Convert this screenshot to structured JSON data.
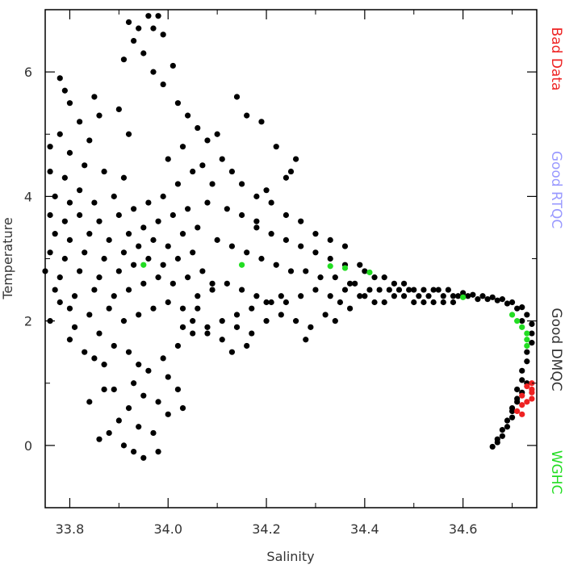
{
  "chart_data": {
    "type": "scatter",
    "xlabel": "Salinity",
    "ylabel": "Temperature",
    "xlim": [
      33.75,
      34.75
    ],
    "ylim": [
      -1.0,
      7.0
    ],
    "x_ticks": [
      {
        "value": 33.8,
        "label": "33.8"
      },
      {
        "value": 34.0,
        "label": "34.0"
      },
      {
        "value": 34.2,
        "label": "34.2"
      },
      {
        "value": 34.4,
        "label": "34.4"
      },
      {
        "value": 34.6,
        "label": "34.6"
      }
    ],
    "x_minor_ticks": [
      33.9,
      34.1,
      34.3,
      34.5,
      34.7
    ],
    "y_ticks": [
      {
        "value": 0,
        "label": "0"
      },
      {
        "value": 2,
        "label": "2"
      },
      {
        "value": 4,
        "label": "4"
      },
      {
        "value": 6,
        "label": "6"
      }
    ],
    "y_minor_ticks": [
      -1,
      1,
      3,
      5,
      7
    ],
    "grid": false,
    "legend_position": "right, vertical text",
    "series": [
      {
        "name": "Good DMQC",
        "color": "#000000",
        "points": [
          [
            33.78,
            5.9
          ],
          [
            33.79,
            5.7
          ],
          [
            33.8,
            5.5
          ],
          [
            33.82,
            5.2
          ],
          [
            33.78,
            5.0
          ],
          [
            33.76,
            4.8
          ],
          [
            33.8,
            4.7
          ],
          [
            33.84,
            4.9
          ],
          [
            33.86,
            5.3
          ],
          [
            33.85,
            5.6
          ],
          [
            33.76,
            4.4
          ],
          [
            33.79,
            4.3
          ],
          [
            33.83,
            4.5
          ],
          [
            33.87,
            4.4
          ],
          [
            33.82,
            4.1
          ],
          [
            33.77,
            4.0
          ],
          [
            33.8,
            3.9
          ],
          [
            33.85,
            3.9
          ],
          [
            33.89,
            4.0
          ],
          [
            33.91,
            4.3
          ],
          [
            33.76,
            3.7
          ],
          [
            33.79,
            3.6
          ],
          [
            33.82,
            3.7
          ],
          [
            33.86,
            3.6
          ],
          [
            33.9,
            3.7
          ],
          [
            33.93,
            3.8
          ],
          [
            33.96,
            3.9
          ],
          [
            33.99,
            4.0
          ],
          [
            34.02,
            4.2
          ],
          [
            34.05,
            4.4
          ],
          [
            33.77,
            3.4
          ],
          [
            33.8,
            3.3
          ],
          [
            33.84,
            3.4
          ],
          [
            33.88,
            3.3
          ],
          [
            33.92,
            3.4
          ],
          [
            33.95,
            3.5
          ],
          [
            33.98,
            3.6
          ],
          [
            34.01,
            3.7
          ],
          [
            34.04,
            3.8
          ],
          [
            34.08,
            3.9
          ],
          [
            33.76,
            3.1
          ],
          [
            33.79,
            3.0
          ],
          [
            33.83,
            3.1
          ],
          [
            33.87,
            3.0
          ],
          [
            33.91,
            3.1
          ],
          [
            33.94,
            3.2
          ],
          [
            33.97,
            3.3
          ],
          [
            34.0,
            3.2
          ],
          [
            34.03,
            3.4
          ],
          [
            34.06,
            3.5
          ],
          [
            33.75,
            2.8
          ],
          [
            33.78,
            2.7
          ],
          [
            33.82,
            2.8
          ],
          [
            33.86,
            2.7
          ],
          [
            33.9,
            2.8
          ],
          [
            33.93,
            2.9
          ],
          [
            33.96,
            3.0
          ],
          [
            33.99,
            2.9
          ],
          [
            34.02,
            3.0
          ],
          [
            34.05,
            3.1
          ],
          [
            33.77,
            2.5
          ],
          [
            33.81,
            2.4
          ],
          [
            33.85,
            2.5
          ],
          [
            33.89,
            2.4
          ],
          [
            33.92,
            2.5
          ],
          [
            33.95,
            2.6
          ],
          [
            33.98,
            2.7
          ],
          [
            34.01,
            2.6
          ],
          [
            34.04,
            2.7
          ],
          [
            34.07,
            2.8
          ],
          [
            33.8,
            2.2
          ],
          [
            33.84,
            2.1
          ],
          [
            33.88,
            2.2
          ],
          [
            33.91,
            2.0
          ],
          [
            33.94,
            2.1
          ],
          [
            33.97,
            2.2
          ],
          [
            34.0,
            2.3
          ],
          [
            34.03,
            2.2
          ],
          [
            34.06,
            2.4
          ],
          [
            34.09,
            2.5
          ],
          [
            33.86,
            1.8
          ],
          [
            33.89,
            1.6
          ],
          [
            33.92,
            1.5
          ],
          [
            33.94,
            1.3
          ],
          [
            33.93,
            1.0
          ],
          [
            33.95,
            0.8
          ],
          [
            33.92,
            0.6
          ],
          [
            33.9,
            0.4
          ],
          [
            33.94,
            0.3
          ],
          [
            33.97,
            0.2
          ],
          [
            33.88,
            0.2
          ],
          [
            33.91,
            0.0
          ],
          [
            33.93,
            -0.1
          ],
          [
            33.95,
            -0.2
          ],
          [
            33.98,
            -0.1
          ],
          [
            33.86,
            0.1
          ],
          [
            33.84,
            0.7
          ],
          [
            33.87,
            0.9
          ],
          [
            34.0,
            0.5
          ],
          [
            34.03,
            0.6
          ],
          [
            33.96,
            1.2
          ],
          [
            33.99,
            1.4
          ],
          [
            34.02,
            1.6
          ],
          [
            34.05,
            1.8
          ],
          [
            34.08,
            1.9
          ],
          [
            34.11,
            2.0
          ],
          [
            34.14,
            2.1
          ],
          [
            34.17,
            2.2
          ],
          [
            34.2,
            2.3
          ],
          [
            34.23,
            2.4
          ],
          [
            33.92,
            6.8
          ],
          [
            33.94,
            6.7
          ],
          [
            33.96,
            6.9
          ],
          [
            33.98,
            6.9
          ],
          [
            33.93,
            6.5
          ],
          [
            33.91,
            6.2
          ],
          [
            33.95,
            6.3
          ],
          [
            33.97,
            6.0
          ],
          [
            34.01,
            6.1
          ],
          [
            33.99,
            5.8
          ],
          [
            34.02,
            5.5
          ],
          [
            34.04,
            5.3
          ],
          [
            34.06,
            5.1
          ],
          [
            34.08,
            4.9
          ],
          [
            34.1,
            5.0
          ],
          [
            34.14,
            5.6
          ],
          [
            34.16,
            5.3
          ],
          [
            34.19,
            5.2
          ],
          [
            34.22,
            4.8
          ],
          [
            34.25,
            4.4
          ],
          [
            34.11,
            4.6
          ],
          [
            34.13,
            4.4
          ],
          [
            34.15,
            4.2
          ],
          [
            34.18,
            4.0
          ],
          [
            34.21,
            3.9
          ],
          [
            34.24,
            3.7
          ],
          [
            34.27,
            3.6
          ],
          [
            34.3,
            3.4
          ],
          [
            34.33,
            3.3
          ],
          [
            34.36,
            3.2
          ],
          [
            34.12,
            3.8
          ],
          [
            34.15,
            3.7
          ],
          [
            34.18,
            3.5
          ],
          [
            34.21,
            3.4
          ],
          [
            34.24,
            3.3
          ],
          [
            34.27,
            3.2
          ],
          [
            34.3,
            3.1
          ],
          [
            34.33,
            3.0
          ],
          [
            34.36,
            2.9
          ],
          [
            34.39,
            2.9
          ],
          [
            34.1,
            3.3
          ],
          [
            34.13,
            3.2
          ],
          [
            34.16,
            3.1
          ],
          [
            34.19,
            3.0
          ],
          [
            34.22,
            2.9
          ],
          [
            34.25,
            2.8
          ],
          [
            34.28,
            2.8
          ],
          [
            34.31,
            2.7
          ],
          [
            34.34,
            2.7
          ],
          [
            34.37,
            2.6
          ],
          [
            34.12,
            2.6
          ],
          [
            34.15,
            2.5
          ],
          [
            34.18,
            2.4
          ],
          [
            34.21,
            2.3
          ],
          [
            34.24,
            2.3
          ],
          [
            34.27,
            2.4
          ],
          [
            34.3,
            2.5
          ],
          [
            34.33,
            2.4
          ],
          [
            34.36,
            2.5
          ],
          [
            34.39,
            2.4
          ],
          [
            34.05,
            2.0
          ],
          [
            34.08,
            1.8
          ],
          [
            34.11,
            1.7
          ],
          [
            34.14,
            1.9
          ],
          [
            34.17,
            1.8
          ],
          [
            34.2,
            2.0
          ],
          [
            34.23,
            2.1
          ],
          [
            34.26,
            2.0
          ],
          [
            34.29,
            1.9
          ],
          [
            34.32,
            2.1
          ],
          [
            34.4,
            2.8
          ],
          [
            34.42,
            2.7
          ],
          [
            34.44,
            2.7
          ],
          [
            34.46,
            2.6
          ],
          [
            34.48,
            2.6
          ],
          [
            34.5,
            2.5
          ],
          [
            34.52,
            2.5
          ],
          [
            34.54,
            2.5
          ],
          [
            34.56,
            2.4
          ],
          [
            34.58,
            2.4
          ],
          [
            34.4,
            2.4
          ],
          [
            34.42,
            2.3
          ],
          [
            34.44,
            2.3
          ],
          [
            34.46,
            2.4
          ],
          [
            34.48,
            2.4
          ],
          [
            34.5,
            2.3
          ],
          [
            34.52,
            2.3
          ],
          [
            34.54,
            2.3
          ],
          [
            34.56,
            2.3
          ],
          [
            34.58,
            2.3
          ],
          [
            34.6,
            2.45
          ],
          [
            34.62,
            2.42
          ],
          [
            34.64,
            2.4
          ],
          [
            34.66,
            2.38
          ],
          [
            34.68,
            2.35
          ],
          [
            34.7,
            2.3
          ],
          [
            34.72,
            2.22
          ],
          [
            34.73,
            2.1
          ],
          [
            34.74,
            1.95
          ],
          [
            34.74,
            1.8
          ],
          [
            34.74,
            1.65
          ],
          [
            34.73,
            1.5
          ],
          [
            34.73,
            1.35
          ],
          [
            34.72,
            1.2
          ],
          [
            34.72,
            1.05
          ],
          [
            34.71,
            0.9
          ],
          [
            34.71,
            0.75
          ],
          [
            34.7,
            0.6
          ],
          [
            34.7,
            0.45
          ],
          [
            34.69,
            0.3
          ],
          [
            34.68,
            0.15
          ],
          [
            34.67,
            0.05
          ],
          [
            34.66,
            -0.02
          ],
          [
            34.67,
            0.1
          ],
          [
            34.68,
            0.25
          ],
          [
            34.69,
            0.4
          ],
          [
            34.7,
            0.55
          ],
          [
            34.71,
            0.7
          ],
          [
            34.72,
            0.85
          ],
          [
            34.73,
            1.0
          ],
          [
            33.97,
            6.7
          ],
          [
            33.99,
            6.6
          ],
          [
            33.9,
            5.4
          ],
          [
            33.92,
            5.0
          ],
          [
            34.0,
            4.6
          ],
          [
            34.03,
            4.8
          ],
          [
            34.07,
            4.5
          ],
          [
            34.09,
            4.2
          ],
          [
            34.26,
            4.6
          ],
          [
            34.24,
            4.3
          ],
          [
            34.2,
            4.1
          ],
          [
            34.18,
            3.6
          ],
          [
            34.09,
            2.6
          ],
          [
            34.06,
            2.2
          ],
          [
            34.03,
            1.9
          ],
          [
            34.0,
            1.1
          ],
          [
            34.02,
            0.9
          ],
          [
            33.98,
            0.7
          ],
          [
            33.89,
            0.9
          ],
          [
            33.87,
            1.3
          ],
          [
            33.83,
            1.5
          ],
          [
            33.81,
            1.9
          ],
          [
            33.78,
            2.3
          ],
          [
            33.76,
            2.0
          ],
          [
            33.8,
            1.7
          ],
          [
            33.85,
            1.4
          ],
          [
            34.13,
            1.5
          ],
          [
            34.16,
            1.6
          ],
          [
            34.28,
            1.7
          ],
          [
            34.34,
            2.0
          ],
          [
            34.35,
            2.3
          ],
          [
            34.37,
            2.2
          ],
          [
            34.38,
            2.6
          ],
          [
            34.41,
            2.5
          ],
          [
            34.43,
            2.5
          ],
          [
            34.45,
            2.5
          ],
          [
            34.47,
            2.5
          ],
          [
            34.49,
            2.5
          ],
          [
            34.51,
            2.4
          ],
          [
            34.53,
            2.4
          ],
          [
            34.55,
            2.5
          ],
          [
            34.57,
            2.5
          ],
          [
            34.59,
            2.4
          ],
          [
            34.61,
            2.4
          ],
          [
            34.63,
            2.35
          ],
          [
            34.65,
            2.35
          ],
          [
            34.67,
            2.33
          ],
          [
            34.69,
            2.28
          ],
          [
            34.71,
            2.2
          ],
          [
            34.72,
            2.0
          ]
        ]
      },
      {
        "name": "WGHC",
        "color": "#22dd22",
        "points": [
          [
            34.15,
            2.9
          ],
          [
            34.33,
            2.88
          ],
          [
            34.36,
            2.85
          ],
          [
            34.41,
            2.78
          ],
          [
            34.6,
            2.38
          ],
          [
            34.7,
            2.1
          ],
          [
            34.71,
            2.0
          ],
          [
            34.72,
            1.9
          ],
          [
            34.73,
            1.8
          ],
          [
            34.73,
            1.7
          ],
          [
            34.73,
            1.6
          ],
          [
            33.95,
            2.9
          ]
        ]
      },
      {
        "name": "Bad Data",
        "color": "#ee2222",
        "points": [
          [
            34.73,
            0.95
          ],
          [
            34.74,
            0.85
          ],
          [
            34.74,
            0.75
          ],
          [
            34.73,
            0.7
          ],
          [
            34.72,
            0.8
          ],
          [
            34.72,
            0.65
          ],
          [
            34.71,
            0.55
          ],
          [
            34.72,
            0.5
          ],
          [
            34.74,
            1.0
          ],
          [
            34.74,
            0.9
          ]
        ]
      },
      {
        "name": "Good RTQC",
        "color": "#9999ff",
        "points": []
      }
    ],
    "legend": [
      {
        "label": "Bad Data",
        "color": "#ee2222"
      },
      {
        "label": "Good RTQC",
        "color": "#9999ff"
      },
      {
        "label": "Good DMQC",
        "color": "#333333"
      },
      {
        "label": "WGHC",
        "color": "#22dd22"
      }
    ]
  }
}
